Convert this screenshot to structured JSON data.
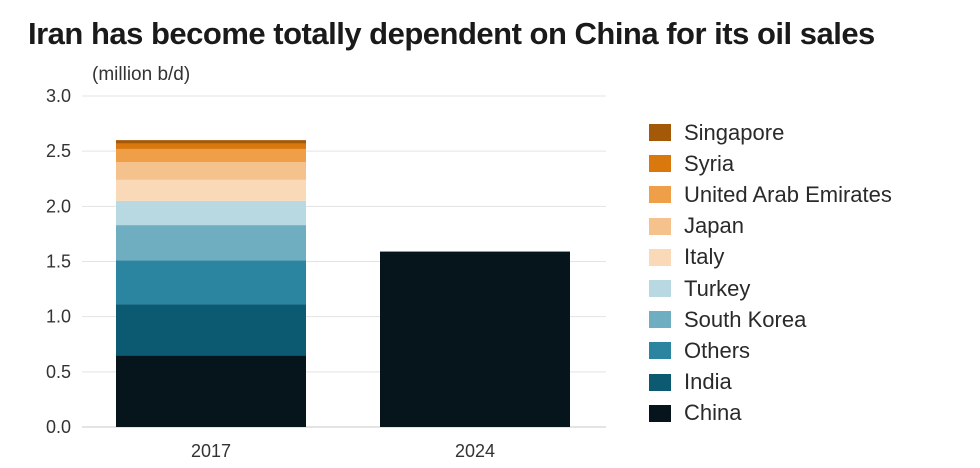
{
  "chart_data": {
    "type": "bar",
    "stacked": true,
    "title": "Iran has become totally dependent on China for its oil sales",
    "unit_label": "(million b/d)",
    "ylabel": "",
    "xlabel": "",
    "ylim": [
      0,
      3.0
    ],
    "yticks": [
      "0.0",
      "0.5",
      "1.0",
      "1.5",
      "2.0",
      "2.5",
      "3.0"
    ],
    "grid": true,
    "legend_position": "right",
    "categories": [
      "2017",
      "2024"
    ],
    "series": [
      {
        "name": "China",
        "color": "#06141b",
        "values": [
          0.65,
          1.59
        ]
      },
      {
        "name": "India",
        "color": "#0b5a72",
        "values": [
          0.46,
          0
        ]
      },
      {
        "name": "Others",
        "color": "#2b84a0",
        "values": [
          0.4,
          0
        ]
      },
      {
        "name": "South Korea",
        "color": "#6fadc1",
        "values": [
          0.32,
          0
        ]
      },
      {
        "name": "Turkey",
        "color": "#b9d9e2",
        "values": [
          0.22,
          0
        ]
      },
      {
        "name": "Italy",
        "color": "#f9d9b8",
        "values": [
          0.19,
          0
        ]
      },
      {
        "name": "Japan",
        "color": "#f5c18d",
        "values": [
          0.16,
          0
        ]
      },
      {
        "name": "United Arab Emirates",
        "color": "#ef9f47",
        "values": [
          0.12,
          0
        ]
      },
      {
        "name": "Syria",
        "color": "#d9780d",
        "values": [
          0.05,
          0
        ]
      },
      {
        "name": "Singapore",
        "color": "#a45908",
        "values": [
          0.03,
          0
        ]
      }
    ]
  }
}
